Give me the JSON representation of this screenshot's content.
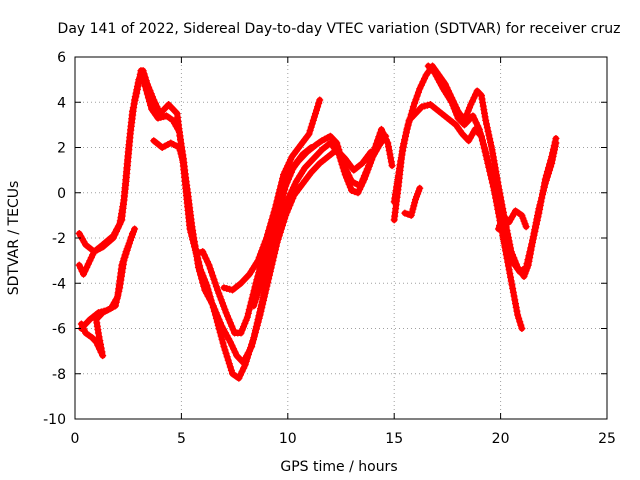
{
  "chart_data": {
    "type": "scatter",
    "title": "Day 141 of 2022, Sidereal Day-to-day VTEC variation (SDTVAR) for receiver cruz",
    "xlabel": "GPS time / hours",
    "ylabel": "SDTVAR / TECUs",
    "xlim": [
      0,
      25
    ],
    "ylim": [
      -10,
      6
    ],
    "xticks": [
      0,
      5,
      10,
      15,
      20,
      25
    ],
    "yticks": [
      -10,
      -8,
      -6,
      -4,
      -2,
      0,
      2,
      4,
      6
    ],
    "grid": true,
    "marker": "plus",
    "color": "#ff0000",
    "series": [
      {
        "name": "trace-1",
        "points": [
          [
            0.2,
            -1.8
          ],
          [
            0.5,
            -2.3
          ],
          [
            0.9,
            -2.6
          ],
          [
            1.3,
            -2.4
          ],
          [
            1.8,
            -2.0
          ],
          [
            2.1,
            -1.4
          ],
          [
            2.3,
            -0.3
          ],
          [
            2.5,
            1.8
          ],
          [
            2.7,
            3.6
          ],
          [
            2.9,
            4.4
          ],
          [
            3.1,
            5.4
          ],
          [
            3.3,
            4.7
          ],
          [
            3.6,
            3.7
          ],
          [
            3.9,
            3.3
          ],
          [
            4.3,
            3.4
          ],
          [
            4.6,
            3.2
          ],
          [
            4.9,
            2.7
          ],
          [
            5.1,
            1.5
          ],
          [
            5.3,
            -0.3
          ],
          [
            5.6,
            -2.2
          ],
          [
            5.9,
            -3.4
          ],
          [
            6.2,
            -4.1
          ],
          [
            6.6,
            -5.4
          ],
          [
            7.0,
            -6.8
          ],
          [
            7.4,
            -8.0
          ],
          [
            7.7,
            -8.2
          ],
          [
            8.0,
            -7.6
          ],
          [
            8.4,
            -6.4
          ],
          [
            8.8,
            -4.8
          ],
          [
            9.2,
            -3.0
          ],
          [
            9.6,
            -1.6
          ],
          [
            10.0,
            -0.3
          ],
          [
            10.4,
            0.5
          ],
          [
            10.8,
            1.1
          ],
          [
            11.2,
            1.5
          ],
          [
            11.6,
            1.9
          ],
          [
            12.0,
            2.2
          ],
          [
            12.4,
            1.7
          ],
          [
            12.7,
            0.8
          ],
          [
            13.0,
            0.1
          ],
          [
            13.3,
            0.0
          ],
          [
            13.6,
            0.6
          ],
          [
            14.0,
            1.6
          ],
          [
            14.3,
            2.1
          ],
          [
            14.6,
            2.5
          ]
        ]
      },
      {
        "name": "trace-2",
        "points": [
          [
            0.2,
            -3.2
          ],
          [
            0.4,
            -3.6
          ],
          [
            0.7,
            -3.0
          ],
          [
            0.9,
            -2.6
          ],
          [
            1.3,
            -2.3
          ],
          [
            1.8,
            -1.9
          ],
          [
            2.2,
            -1.2
          ],
          [
            2.4,
            0.5
          ],
          [
            2.6,
            2.6
          ],
          [
            2.8,
            4.1
          ],
          [
            3.0,
            5.0
          ],
          [
            3.2,
            5.4
          ],
          [
            3.4,
            4.8
          ],
          [
            3.7,
            4.1
          ],
          [
            4.0,
            3.5
          ],
          [
            4.4,
            3.9
          ],
          [
            4.8,
            3.5
          ],
          [
            5.0,
            2.0
          ],
          [
            5.2,
            0.2
          ],
          [
            5.4,
            -1.6
          ],
          [
            5.7,
            -2.7
          ],
          [
            6.0,
            -2.6
          ],
          [
            6.3,
            -3.2
          ],
          [
            6.7,
            -4.3
          ],
          [
            7.1,
            -5.3
          ],
          [
            7.5,
            -6.2
          ],
          [
            7.8,
            -6.2
          ],
          [
            8.1,
            -5.5
          ],
          [
            8.5,
            -4.0
          ],
          [
            8.9,
            -2.6
          ],
          [
            9.3,
            -1.2
          ],
          [
            9.7,
            0.0
          ],
          [
            10.1,
            0.9
          ],
          [
            10.5,
            1.4
          ],
          [
            10.9,
            1.8
          ],
          [
            11.3,
            2.1
          ],
          [
            11.6,
            2.3
          ],
          [
            12.0,
            2.5
          ],
          [
            12.3,
            2.2
          ],
          [
            12.6,
            1.3
          ],
          [
            13.0,
            0.5
          ],
          [
            13.4,
            0.3
          ],
          [
            13.8,
            1.2
          ],
          [
            14.1,
            2.0
          ],
          [
            14.4,
            2.8
          ],
          [
            14.7,
            2.2
          ],
          [
            14.9,
            1.2
          ]
        ]
      },
      {
        "name": "trace-3",
        "points": [
          [
            0.3,
            -5.8
          ],
          [
            0.5,
            -6.2
          ],
          [
            0.8,
            -6.4
          ],
          [
            1.0,
            -6.6
          ],
          [
            1.3,
            -7.2
          ],
          [
            1.1,
            -6.2
          ],
          [
            1.0,
            -5.6
          ],
          [
            1.3,
            -5.3
          ],
          [
            1.7,
            -5.1
          ],
          [
            2.0,
            -4.6
          ],
          [
            2.2,
            -3.2
          ],
          [
            2.4,
            -2.6
          ],
          [
            2.6,
            -2.1
          ],
          [
            2.8,
            -1.6
          ]
        ]
      },
      {
        "name": "trace-4",
        "points": [
          [
            0.3,
            -6.0
          ],
          [
            0.7,
            -5.6
          ],
          [
            1.1,
            -5.3
          ],
          [
            1.5,
            -5.2
          ],
          [
            1.9,
            -5.0
          ],
          [
            2.1,
            -4.2
          ],
          [
            2.3,
            -3.0
          ],
          [
            2.5,
            -2.4
          ],
          [
            2.7,
            -1.8
          ]
        ]
      },
      {
        "name": "trace-5",
        "points": [
          [
            3.7,
            2.3
          ],
          [
            4.1,
            2.0
          ],
          [
            4.5,
            2.2
          ],
          [
            4.9,
            2.0
          ],
          [
            5.1,
            1.3
          ],
          [
            5.3,
            0.0
          ],
          [
            5.5,
            -1.5
          ],
          [
            5.8,
            -3.3
          ],
          [
            6.1,
            -4.3
          ],
          [
            6.5,
            -5.0
          ],
          [
            6.9,
            -5.9
          ],
          [
            7.3,
            -6.6
          ],
          [
            7.6,
            -7.2
          ],
          [
            7.9,
            -7.5
          ],
          [
            8.3,
            -6.8
          ],
          [
            8.7,
            -5.4
          ],
          [
            9.1,
            -3.8
          ],
          [
            9.5,
            -2.2
          ],
          [
            9.9,
            -1.0
          ],
          [
            10.3,
            -0.1
          ],
          [
            10.7,
            0.4
          ],
          [
            11.1,
            0.9
          ],
          [
            11.5,
            1.3
          ],
          [
            11.9,
            1.6
          ],
          [
            12.3,
            1.9
          ],
          [
            12.7,
            1.5
          ],
          [
            13.1,
            1.0
          ],
          [
            13.5,
            1.3
          ],
          [
            13.9,
            1.8
          ]
        ]
      },
      {
        "name": "trace-6",
        "points": [
          [
            7.0,
            -4.2
          ],
          [
            7.4,
            -4.3
          ],
          [
            7.8,
            -4.0
          ],
          [
            8.2,
            -3.6
          ],
          [
            8.6,
            -3.0
          ],
          [
            9.0,
            -2.0
          ],
          [
            9.4,
            -0.7
          ],
          [
            9.8,
            0.8
          ],
          [
            10.2,
            1.6
          ],
          [
            10.6,
            2.1
          ],
          [
            11.0,
            2.6
          ],
          [
            11.3,
            3.5
          ],
          [
            11.5,
            4.1
          ]
        ]
      },
      {
        "name": "trace-7",
        "points": [
          [
            8.4,
            -5.0
          ],
          [
            8.7,
            -4.1
          ],
          [
            9.0,
            -3.1
          ],
          [
            9.3,
            -2.0
          ],
          [
            9.6,
            -0.7
          ],
          [
            9.9,
            0.3
          ],
          [
            10.3,
            1.2
          ],
          [
            10.7,
            1.7
          ],
          [
            11.1,
            2.0
          ]
        ]
      },
      {
        "name": "trace-8",
        "points": [
          [
            15.0,
            -1.2
          ],
          [
            15.2,
            0.3
          ],
          [
            15.4,
            2.0
          ],
          [
            15.7,
            3.2
          ],
          [
            16.0,
            3.5
          ],
          [
            16.3,
            3.8
          ],
          [
            16.7,
            3.9
          ],
          [
            17.1,
            3.6
          ],
          [
            17.5,
            3.3
          ],
          [
            17.9,
            3.0
          ],
          [
            18.2,
            2.6
          ],
          [
            18.5,
            2.3
          ],
          [
            18.8,
            2.8
          ],
          [
            19.1,
            2.5
          ],
          [
            19.4,
            1.3
          ],
          [
            19.7,
            0.1
          ],
          [
            20.0,
            -1.2
          ],
          [
            20.3,
            -2.3
          ],
          [
            20.6,
            -3.1
          ],
          [
            20.9,
            -3.5
          ],
          [
            21.2,
            -3.3
          ],
          [
            21.5,
            -2.1
          ],
          [
            21.8,
            -0.7
          ],
          [
            22.1,
            0.4
          ],
          [
            22.4,
            1.3
          ],
          [
            22.6,
            2.2
          ]
        ]
      },
      {
        "name": "trace-9",
        "points": [
          [
            15.0,
            -0.4
          ],
          [
            15.3,
            1.4
          ],
          [
            15.6,
            2.8
          ],
          [
            15.9,
            3.8
          ],
          [
            16.2,
            4.6
          ],
          [
            16.5,
            5.2
          ],
          [
            16.8,
            5.6
          ],
          [
            17.1,
            5.2
          ],
          [
            17.4,
            4.8
          ],
          [
            17.7,
            4.2
          ],
          [
            18.0,
            3.6
          ],
          [
            18.3,
            3.2
          ],
          [
            18.6,
            3.9
          ],
          [
            18.9,
            4.5
          ],
          [
            19.1,
            4.3
          ],
          [
            19.3,
            3.2
          ],
          [
            19.6,
            1.9
          ],
          [
            19.9,
            0.3
          ],
          [
            20.2,
            -1.2
          ],
          [
            20.5,
            -2.6
          ],
          [
            20.8,
            -3.3
          ],
          [
            21.1,
            -3.7
          ],
          [
            21.3,
            -3.2
          ],
          [
            21.5,
            -2.2
          ],
          [
            21.8,
            -0.9
          ],
          [
            22.1,
            0.6
          ],
          [
            22.4,
            1.6
          ],
          [
            22.6,
            2.4
          ]
        ]
      },
      {
        "name": "trace-10",
        "points": [
          [
            15.5,
            -0.9
          ],
          [
            15.8,
            -1.0
          ],
          [
            16.0,
            -0.3
          ],
          [
            16.2,
            0.2
          ]
        ]
      },
      {
        "name": "trace-11",
        "points": [
          [
            16.6,
            5.6
          ],
          [
            16.9,
            5.3
          ],
          [
            17.3,
            4.6
          ],
          [
            17.7,
            4.0
          ],
          [
            18.0,
            3.3
          ],
          [
            18.3,
            3.0
          ],
          [
            18.7,
            3.4
          ],
          [
            19.0,
            2.8
          ],
          [
            19.3,
            1.8
          ],
          [
            19.6,
            0.6
          ],
          [
            19.9,
            -0.9
          ],
          [
            20.2,
            -2.4
          ],
          [
            20.5,
            -3.9
          ],
          [
            20.8,
            -5.4
          ],
          [
            21.0,
            -6.0
          ]
        ]
      },
      {
        "name": "trace-12",
        "points": [
          [
            19.9,
            -1.6
          ],
          [
            20.1,
            -1.0
          ],
          [
            20.4,
            -1.3
          ],
          [
            20.7,
            -0.8
          ],
          [
            21.0,
            -1.0
          ],
          [
            21.2,
            -1.5
          ]
        ]
      }
    ]
  }
}
